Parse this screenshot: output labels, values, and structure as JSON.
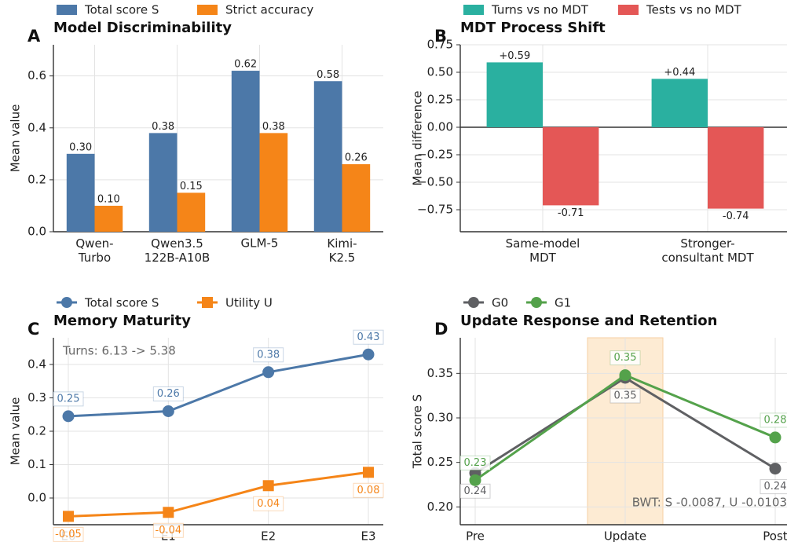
{
  "chart_data": [
    {
      "type": "bar",
      "panel": "A",
      "title": "Model Discriminability",
      "ylabel": "Mean value",
      "categories": [
        "Qwen-\nTurbo",
        "Qwen3.5\n122B-A10B",
        "GLM-5",
        "Kimi-\nK2.5"
      ],
      "series": [
        {
          "name": "Total score S",
          "color": "#4c78a8",
          "values": [
            0.3,
            0.38,
            0.62,
            0.58
          ],
          "value_labels": [
            "0.30",
            "0.38",
            "0.62",
            "0.58"
          ]
        },
        {
          "name": "Strict accuracy",
          "color": "#f58518",
          "values": [
            0.1,
            0.15,
            0.38,
            0.26
          ],
          "value_labels": [
            "0.10",
            "0.15",
            "0.38",
            "0.26"
          ]
        }
      ],
      "ylim": [
        0,
        0.72
      ],
      "yticks": [
        {
          "value": 0,
          "label": "0.0"
        },
        0.2,
        0.4,
        0.6
      ],
      "grid": true
    },
    {
      "type": "bar",
      "panel": "B",
      "title": "MDT Process Shift",
      "ylabel": "Mean difference",
      "categories": [
        "Same-model\nMDT",
        "Stronger-\nconsultant MDT"
      ],
      "series": [
        {
          "name": "Turns vs no MDT",
          "color": "#2ab0a0",
          "values": [
            0.59,
            0.44
          ],
          "value_labels": [
            "+0.59",
            "+0.44"
          ]
        },
        {
          "name": "Tests vs no MDT",
          "color": "#e45756",
          "values": [
            -0.71,
            -0.74
          ],
          "value_labels": [
            "-0.71",
            "-0.74"
          ]
        }
      ],
      "ylim": [
        -0.95,
        0.75
      ],
      "yticks": [
        0.75,
        {
          "value": 0.5,
          "label": "0.50"
        },
        0.25,
        {
          "value": 0,
          "label": "0.00"
        },
        {
          "value": -0.25,
          "label": "−0.25"
        },
        {
          "value": -0.5,
          "label": "−0.50"
        },
        {
          "value": -0.75,
          "label": "−0.75"
        }
      ],
      "grid": true,
      "zero_line": true
    },
    {
      "type": "line",
      "panel": "C",
      "title": "Memory Maturity",
      "ylabel": "Mean value",
      "categories": [
        "E0",
        "E1",
        "E2",
        "E3"
      ],
      "series": [
        {
          "name": "Total score S",
          "color": "#4c78a8",
          "marker": "circle",
          "label_side": "above",
          "values": [
            0.245,
            0.26,
            0.377,
            0.43
          ],
          "value_labels": [
            "0.25",
            "0.26",
            "0.38",
            "0.43"
          ]
        },
        {
          "name": "Utility U",
          "color": "#f58518",
          "marker": "square",
          "label_side": "below",
          "values": [
            -0.055,
            -0.043,
            0.037,
            0.077
          ],
          "value_labels": [
            "-0.05",
            "-0.04",
            "0.04",
            "0.08"
          ]
        }
      ],
      "ylim": [
        -0.08,
        0.48
      ],
      "yticks": [
        {
          "value": 0,
          "label": "0.0"
        },
        0.1,
        0.2,
        0.3,
        0.4
      ],
      "grid": true,
      "annotation": "Turns: 6.13 -> 5.38"
    },
    {
      "type": "line",
      "panel": "D",
      "title": "Update Response and Retention",
      "ylabel": "Total score S",
      "categories": [
        "Pre",
        "Update",
        "Post"
      ],
      "series": [
        {
          "name": "G0",
          "color": "#5f6063",
          "marker": "circle",
          "label_side": "below",
          "values": [
            0.238,
            0.345,
            0.243
          ],
          "value_labels": [
            "0.24",
            "0.35",
            "0.24"
          ]
        },
        {
          "name": "G1",
          "color": "#54a24b",
          "marker": "circle",
          "label_side": "above",
          "values": [
            0.23,
            0.348,
            0.278
          ],
          "value_labels": [
            "0.23",
            "0.35",
            "0.28"
          ]
        }
      ],
      "ylim": [
        0.18,
        0.39
      ],
      "yticks": [
        {
          "value": 0.2,
          "label": "0.20"
        },
        0.25,
        {
          "value": 0.3,
          "label": "0.30"
        },
        0.35
      ],
      "grid": true,
      "highlight": "Update",
      "highlight_color": "#fdebd3",
      "annotation": "BWT: S -0.0087, U -0.0103"
    }
  ]
}
